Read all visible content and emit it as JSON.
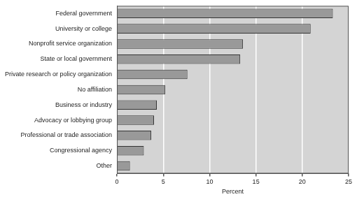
{
  "chart_data": {
    "type": "bar",
    "orientation": "horizontal",
    "categories": [
      "Federal government",
      "University or college",
      "Nonprofit service organization",
      "State or local government",
      "Private research or policy organization",
      "No affiliation",
      "Business or industry",
      "Advocacy or lobbying group",
      "Professional or trade association",
      "Congressional agency",
      "Other"
    ],
    "values": [
      23.3,
      20.9,
      13.6,
      13.3,
      7.6,
      5.2,
      4.3,
      4.0,
      3.7,
      2.9,
      1.4
    ],
    "color": "#999999",
    "x_label": "Percent",
    "xlim": [
      0,
      25
    ],
    "xticks": [
      0,
      5,
      10,
      15,
      20,
      25
    ],
    "grid": true
  }
}
